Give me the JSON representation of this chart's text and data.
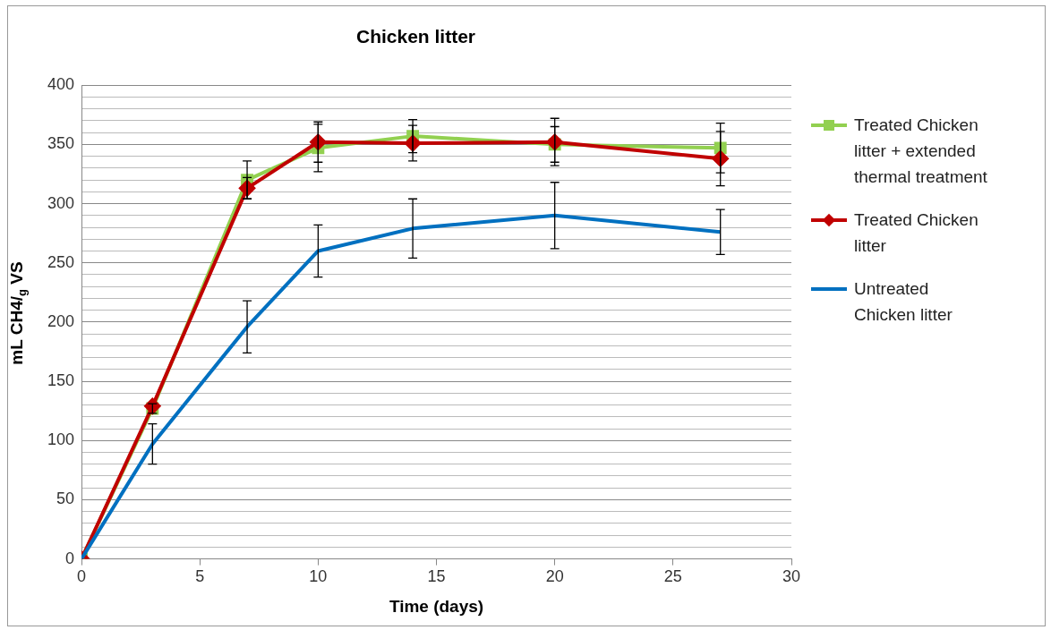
{
  "chart_data": {
    "type": "line",
    "title": "Chicken litter",
    "xlabel": "Time (days)",
    "ylabel": "mL CH4/$_{g}$ VS",
    "x": [
      0,
      3,
      7,
      10,
      14,
      20,
      27
    ],
    "series": [
      {
        "name": "Treated Chicken litter + extended thermal treatment",
        "color": "#92d050",
        "marker": "square",
        "values": [
          0,
          127,
          320,
          347,
          357,
          350,
          347
        ],
        "errors": [
          null,
          4,
          16,
          20,
          14,
          15,
          21
        ]
      },
      {
        "name": "Treated Chicken litter",
        "color": "#c00000",
        "marker": "diamond",
        "values": [
          0,
          129,
          313,
          352,
          351,
          352,
          338
        ],
        "errors": [
          null,
          null,
          9,
          17,
          15,
          20,
          23
        ]
      },
      {
        "name": "Untreated Chicken litter",
        "color": "#0070c0",
        "marker": "none",
        "values": [
          0,
          97,
          196,
          260,
          279,
          290,
          276
        ],
        "errors": [
          null,
          17,
          22,
          22,
          25,
          28,
          19
        ]
      }
    ],
    "xlim": [
      0,
      30
    ],
    "xticks": [
      0,
      5,
      10,
      15,
      20,
      25,
      30
    ],
    "ylim": [
      0,
      400
    ],
    "yticks": [
      0,
      {
        "value": 10,
        "label": null
      },
      {
        "value": 20,
        "label": null
      },
      {
        "value": 30,
        "label": null
      },
      {
        "value": 40,
        "label": null
      },
      50,
      {
        "value": 60,
        "label": null
      },
      {
        "value": 70,
        "label": null
      },
      {
        "value": 80,
        "label": null
      },
      {
        "value": 90,
        "label": null
      },
      100,
      {
        "value": 110,
        "label": null
      },
      {
        "value": 120,
        "label": null
      },
      {
        "value": 130,
        "label": null
      },
      {
        "value": 140,
        "label": null
      },
      150,
      {
        "value": 160,
        "label": null
      },
      {
        "value": 170,
        "label": null
      },
      {
        "value": 180,
        "label": null
      },
      {
        "value": 190,
        "label": null
      },
      200,
      {
        "value": 210,
        "label": null
      },
      {
        "value": 220,
        "label": null
      },
      {
        "value": 230,
        "label": null
      },
      {
        "value": 240,
        "label": null
      },
      250,
      {
        "value": 260,
        "label": null
      },
      {
        "value": 270,
        "label": null
      },
      {
        "value": 280,
        "label": null
      },
      {
        "value": 290,
        "label": null
      },
      300,
      {
        "value": 310,
        "label": null
      },
      {
        "value": 320,
        "label": null
      },
      {
        "value": 330,
        "label": null
      },
      {
        "value": 340,
        "label": null
      },
      350,
      {
        "value": 360,
        "label": null
      },
      {
        "value": 370,
        "label": null
      },
      {
        "value": 380,
        "label": null
      },
      {
        "value": 390,
        "label": null
      },
      400
    ],
    "grid": "y",
    "legend": "right",
    "line_style": "solid"
  }
}
